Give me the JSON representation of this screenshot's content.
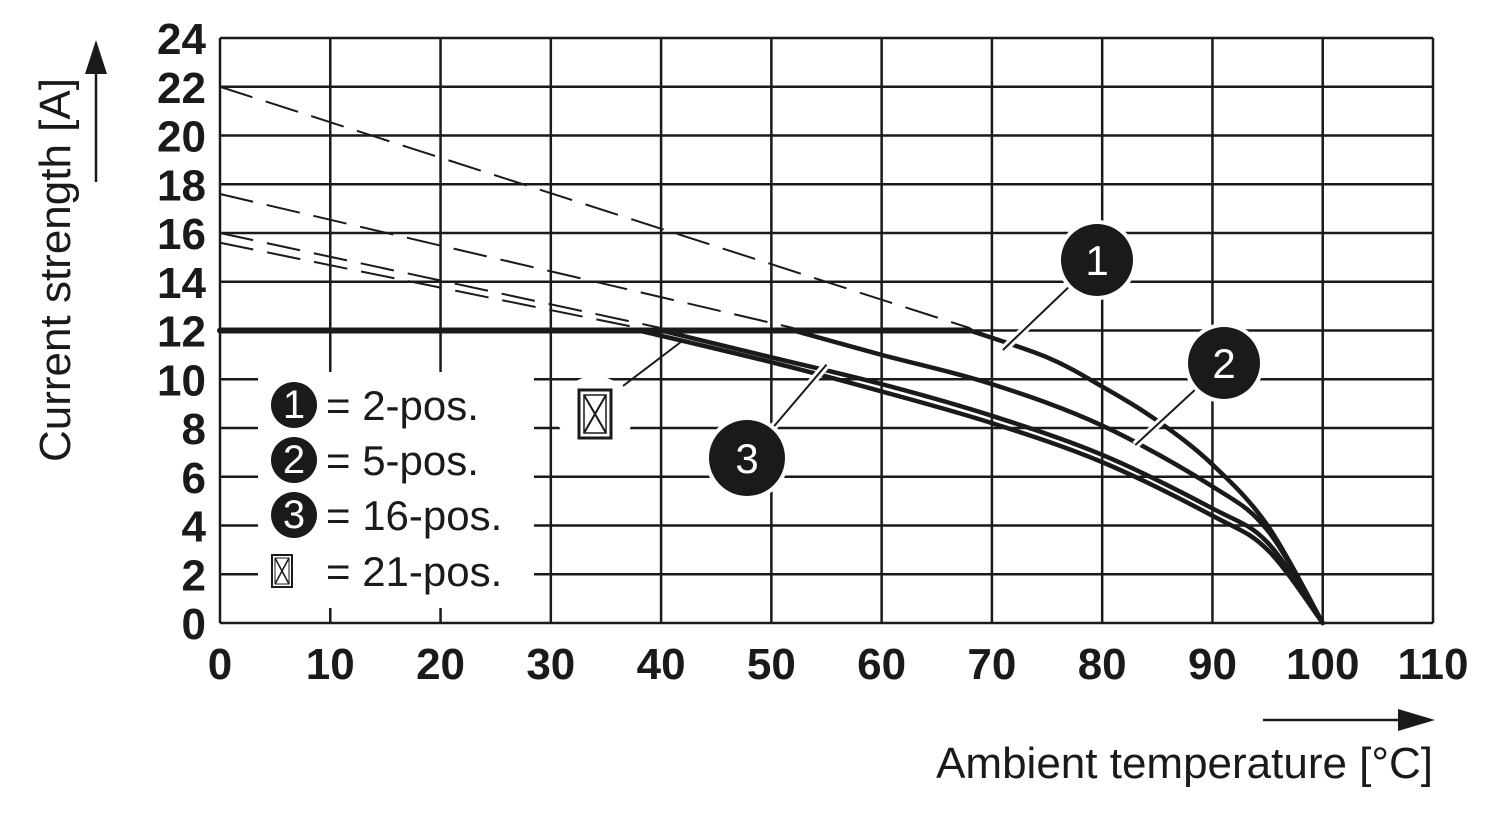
{
  "chart_data": {
    "type": "line",
    "xlabel": "Ambient temperature [°C]",
    "ylabel": "Current strength [A]",
    "xlim": [
      0,
      110
    ],
    "ylim": [
      0,
      24
    ],
    "xticks": [
      0,
      10,
      20,
      30,
      40,
      50,
      60,
      70,
      80,
      90,
      100,
      110
    ],
    "yticks": [
      0,
      2,
      4,
      6,
      8,
      10,
      12,
      14,
      16,
      18,
      20,
      22,
      24
    ],
    "grid": true,
    "legend_position": "bottom-left",
    "legend": [
      {
        "marker": "1",
        "label": "= 2-pos."
      },
      {
        "marker": "2",
        "label": "= 5-pos."
      },
      {
        "marker": "3",
        "label": "= 16-pos."
      },
      {
        "marker": "crossed-box",
        "label": "= 21-pos."
      }
    ],
    "series": [
      {
        "marker": "1",
        "style": "solid",
        "x": [
          68,
          75,
          80,
          85,
          90,
          95,
          100
        ],
        "y": [
          12,
          10.9,
          9.7,
          8.3,
          6.5,
          4.0,
          0
        ]
      },
      {
        "marker": "2",
        "style": "solid",
        "x": [
          52,
          60,
          70,
          80,
          90,
          95,
          100
        ],
        "y": [
          12,
          11.0,
          9.8,
          8.1,
          5.6,
          3.8,
          0
        ]
      },
      {
        "marker": "3",
        "style": "solid",
        "x": [
          40,
          50,
          60,
          70,
          80,
          90,
          95,
          100
        ],
        "y": [
          12,
          10.9,
          9.8,
          8.5,
          6.9,
          4.7,
          3.3,
          0
        ]
      },
      {
        "marker": "crossed-box",
        "style": "solid",
        "x": [
          38,
          50,
          60,
          70,
          80,
          90,
          95,
          100
        ],
        "y": [
          12,
          10.7,
          9.5,
          8.2,
          6.6,
          4.4,
          3.0,
          0
        ]
      },
      {
        "marker": "rated",
        "style": "solid-bold",
        "x": [
          0,
          68
        ],
        "y": [
          12,
          12
        ]
      },
      {
        "marker": "1",
        "style": "dashed",
        "x": [
          0,
          68
        ],
        "y": [
          22,
          12.1
        ]
      },
      {
        "marker": "2",
        "style": "dashed",
        "x": [
          0,
          52
        ],
        "y": [
          17.6,
          12.1
        ]
      },
      {
        "marker": "3",
        "style": "dashed",
        "x": [
          0,
          40
        ],
        "y": [
          16.0,
          12.1
        ]
      },
      {
        "marker": "crossed-box",
        "style": "dashed",
        "x": [
          0,
          38
        ],
        "y": [
          15.6,
          12.1
        ]
      }
    ],
    "callouts": [
      {
        "marker": "1",
        "x": 71,
        "y": 11.2
      },
      {
        "marker": "2",
        "x": 83,
        "y": 7.3
      },
      {
        "marker": "3",
        "x": 55,
        "y": 10.6
      },
      {
        "marker": "crossed-box",
        "x": 42,
        "y": 11.6
      }
    ]
  }
}
